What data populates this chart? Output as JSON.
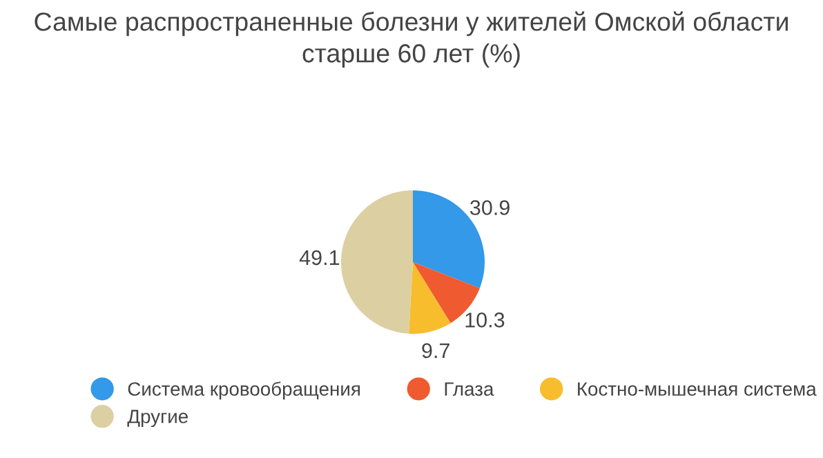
{
  "chart_data": {
    "type": "pie",
    "title": "Самые распространенные болезни у жителей Омской области старше 60 лет (%)",
    "categories": [
      "Система кровообращения",
      "Глаза",
      "Костно-мышечная система",
      "Другие"
    ],
    "values": [
      30.9,
      10.3,
      9.7,
      49.1
    ],
    "colors": [
      "#3399e8",
      "#f05a30",
      "#f7bd2c",
      "#dccfa2"
    ],
    "data_labels": true,
    "legend": "bottom"
  }
}
